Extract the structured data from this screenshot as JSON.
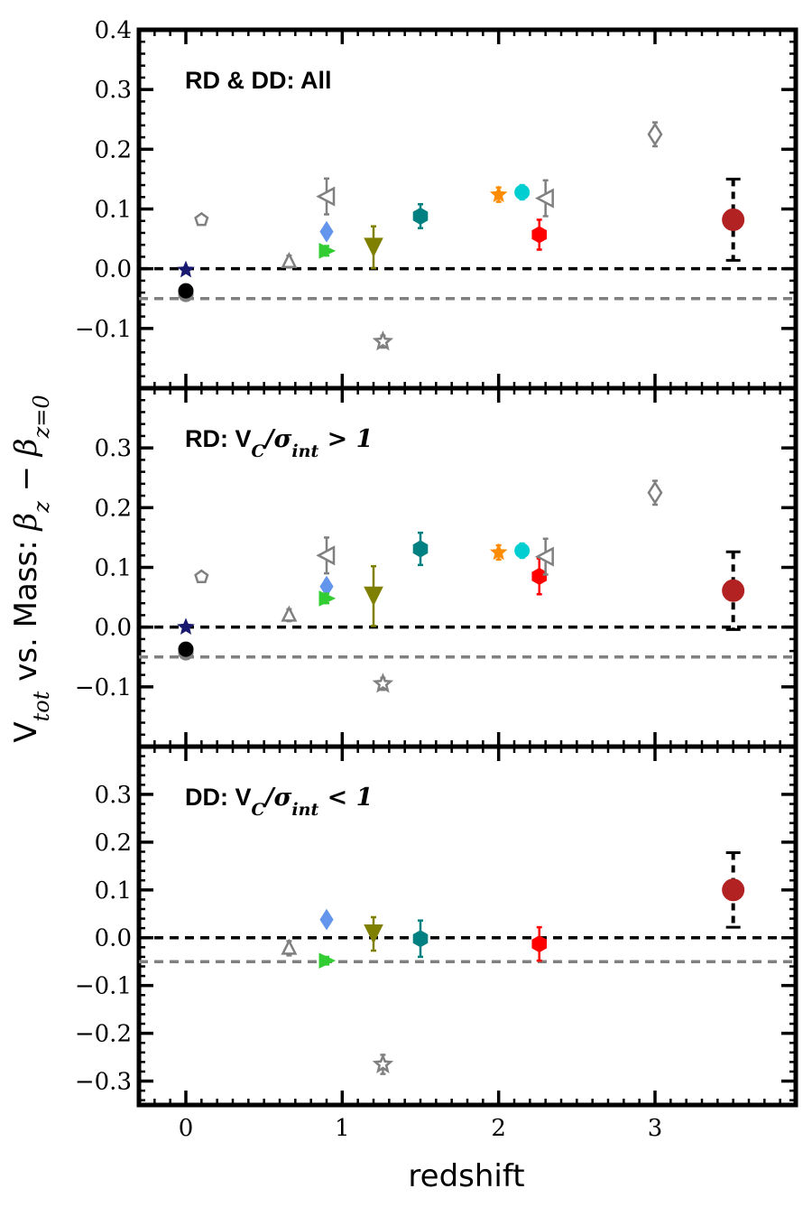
{
  "chart_data": {
    "type": "scatter",
    "xlabel": "redshift",
    "ylabel": {
      "prefix": "V",
      "sub1": "tot",
      "middle": " vs. Mass: ",
      "beta": "β",
      "sub2": "z",
      "minus": " − ",
      "sub3": "z=0"
    },
    "xlim": [
      -0.3,
      3.9
    ],
    "x_ticks": [
      0,
      1,
      2,
      3
    ],
    "x_tick_labels": [
      "0",
      "1",
      "2",
      "3"
    ],
    "reference_lines": [
      {
        "y": 0.0,
        "color": "#000000",
        "style": "dashed"
      },
      {
        "y": -0.05,
        "color": "#808080",
        "style": "dashed"
      }
    ],
    "panels": [
      {
        "id": "all",
        "title": {
          "text": "RD & DD: All",
          "math": ""
        },
        "ylim": [
          -0.2,
          0.4
        ],
        "y_ticks": [
          -0.1,
          0.0,
          0.1,
          0.2,
          0.3,
          0.4
        ],
        "y_tick_labels": [
          "−0.1",
          "0.0",
          "0.1",
          "0.2",
          "0.3",
          "0.4"
        ],
        "points": [
          {
            "x": 0.0,
            "y": -0.043,
            "err": 0.006,
            "marker": "circle",
            "color": "#808080",
            "filled": true
          },
          {
            "x": 0.0,
            "y": -0.037,
            "err": 0.008,
            "marker": "circle",
            "color": "#000000",
            "filled": true
          },
          {
            "x": 0.0,
            "y": -0.002,
            "err": 0.004,
            "marker": "star",
            "color": "#191970",
            "filled": true
          },
          {
            "x": 0.1,
            "y": 0.082,
            "err": 0.006,
            "marker": "pentagon",
            "color": "#808080",
            "filled": false
          },
          {
            "x": 0.66,
            "y": 0.012,
            "err": 0.01,
            "marker": "triangle-up",
            "color": "#808080",
            "filled": false
          },
          {
            "x": 0.9,
            "y": 0.062,
            "err": 0.01,
            "marker": "diamond",
            "color": "#6495ED",
            "filled": true
          },
          {
            "x": 0.9,
            "y": 0.03,
            "err": 0.008,
            "marker": "triangle-right",
            "color": "#32CD32",
            "filled": true
          },
          {
            "x": 0.9,
            "y": 0.121,
            "err": 0.03,
            "marker": "triangle-left",
            "color": "#808080",
            "filled": false
          },
          {
            "x": 1.2,
            "y": 0.036,
            "err": 0.035,
            "marker": "triangle-down",
            "color": "#808000",
            "filled": true
          },
          {
            "x": 1.26,
            "y": -0.122,
            "err": 0.01,
            "marker": "star",
            "color": "#808080",
            "filled": false
          },
          {
            "x": 1.5,
            "y": 0.088,
            "err": 0.02,
            "marker": "hexagon",
            "color": "#008080",
            "filled": true
          },
          {
            "x": 2.0,
            "y": 0.124,
            "err": 0.012,
            "marker": "star",
            "color": "#FF8C00",
            "filled": true
          },
          {
            "x": 2.15,
            "y": 0.128,
            "err": 0.012,
            "marker": "circle",
            "color": "#00CED1",
            "filled": true
          },
          {
            "x": 2.26,
            "y": 0.057,
            "err": 0.025,
            "marker": "hexagon",
            "color": "#FF0000",
            "filled": true
          },
          {
            "x": 2.3,
            "y": 0.118,
            "err": 0.03,
            "marker": "triangle-left",
            "color": "#808080",
            "filled": false
          },
          {
            "x": 3.0,
            "y": 0.225,
            "err": 0.02,
            "marker": "diamond",
            "color": "#808080",
            "filled": false
          },
          {
            "x": 3.5,
            "y": 0.082,
            "err": 0.068,
            "marker": "circle",
            "color": "#B22222",
            "filled": true,
            "dotted_err": true
          }
        ]
      },
      {
        "id": "rd",
        "title": {
          "text": "RD: ",
          "math": "V_C/σ_int > 1"
        },
        "ylim": [
          -0.2,
          0.4
        ],
        "y_ticks": [
          -0.1,
          0.0,
          0.1,
          0.2,
          0.3
        ],
        "y_tick_labels": [
          "−0.1",
          "0.0",
          "0.1",
          "0.2",
          "0.3"
        ],
        "points": [
          {
            "x": 0.0,
            "y": -0.043,
            "err": 0.006,
            "marker": "circle",
            "color": "#808080",
            "filled": true
          },
          {
            "x": 0.0,
            "y": -0.037,
            "err": 0.008,
            "marker": "circle",
            "color": "#000000",
            "filled": true
          },
          {
            "x": 0.0,
            "y": 0.0,
            "err": 0.004,
            "marker": "star",
            "color": "#191970",
            "filled": true
          },
          {
            "x": 0.1,
            "y": 0.084,
            "err": 0.006,
            "marker": "pentagon",
            "color": "#808080",
            "filled": false
          },
          {
            "x": 0.66,
            "y": 0.02,
            "err": 0.01,
            "marker": "triangle-up",
            "color": "#808080",
            "filled": false
          },
          {
            "x": 0.9,
            "y": 0.068,
            "err": 0.01,
            "marker": "diamond",
            "color": "#6495ED",
            "filled": true
          },
          {
            "x": 0.9,
            "y": 0.048,
            "err": 0.008,
            "marker": "triangle-right",
            "color": "#32CD32",
            "filled": true
          },
          {
            "x": 0.9,
            "y": 0.12,
            "err": 0.03,
            "marker": "triangle-left",
            "color": "#808080",
            "filled": false
          },
          {
            "x": 1.2,
            "y": 0.052,
            "err": 0.05,
            "marker": "triangle-down",
            "color": "#808000",
            "filled": true
          },
          {
            "x": 1.26,
            "y": -0.095,
            "err": 0.01,
            "marker": "star",
            "color": "#808080",
            "filled": false
          },
          {
            "x": 1.5,
            "y": 0.131,
            "err": 0.027,
            "marker": "hexagon",
            "color": "#008080",
            "filled": true
          },
          {
            "x": 2.0,
            "y": 0.125,
            "err": 0.012,
            "marker": "star",
            "color": "#FF8C00",
            "filled": true
          },
          {
            "x": 2.15,
            "y": 0.128,
            "err": 0.012,
            "marker": "circle",
            "color": "#00CED1",
            "filled": true
          },
          {
            "x": 2.26,
            "y": 0.085,
            "err": 0.03,
            "marker": "hexagon",
            "color": "#FF0000",
            "filled": true
          },
          {
            "x": 2.3,
            "y": 0.118,
            "err": 0.03,
            "marker": "triangle-left",
            "color": "#808080",
            "filled": false
          },
          {
            "x": 3.0,
            "y": 0.225,
            "err": 0.02,
            "marker": "diamond",
            "color": "#808080",
            "filled": false
          },
          {
            "x": 3.5,
            "y": 0.061,
            "err": 0.065,
            "marker": "circle",
            "color": "#B22222",
            "filled": true,
            "dotted_err": true
          }
        ]
      },
      {
        "id": "dd",
        "title": {
          "text": "DD: ",
          "math": "V_C/σ_int < 1"
        },
        "ylim": [
          -0.35,
          0.4
        ],
        "y_ticks": [
          -0.3,
          -0.2,
          -0.1,
          0.0,
          0.1,
          0.2,
          0.3
        ],
        "y_tick_labels": [
          "−0.3",
          "−0.2",
          "−0.1",
          "0.0",
          "0.1",
          "0.2",
          "0.3"
        ],
        "points": [
          {
            "x": 0.66,
            "y": -0.022,
            "err": 0.015,
            "marker": "triangle-up",
            "color": "#808080",
            "filled": false
          },
          {
            "x": 0.9,
            "y": 0.038,
            "err": 0.01,
            "marker": "diamond",
            "color": "#6495ED",
            "filled": true
          },
          {
            "x": 0.9,
            "y": -0.048,
            "err": 0.008,
            "marker": "triangle-right",
            "color": "#32CD32",
            "filled": true
          },
          {
            "x": 1.2,
            "y": 0.008,
            "err": 0.035,
            "marker": "triangle-down",
            "color": "#808000",
            "filled": true
          },
          {
            "x": 1.26,
            "y": -0.265,
            "err": 0.02,
            "marker": "star",
            "color": "#808080",
            "filled": false
          },
          {
            "x": 1.5,
            "y": -0.002,
            "err": 0.038,
            "marker": "hexagon",
            "color": "#008080",
            "filled": true
          },
          {
            "x": 2.26,
            "y": -0.013,
            "err": 0.035,
            "marker": "hexagon",
            "color": "#FF0000",
            "filled": true
          },
          {
            "x": 3.5,
            "y": 0.1,
            "err": 0.078,
            "marker": "circle",
            "color": "#B22222",
            "filled": true,
            "dotted_err": true
          }
        ]
      }
    ]
  }
}
